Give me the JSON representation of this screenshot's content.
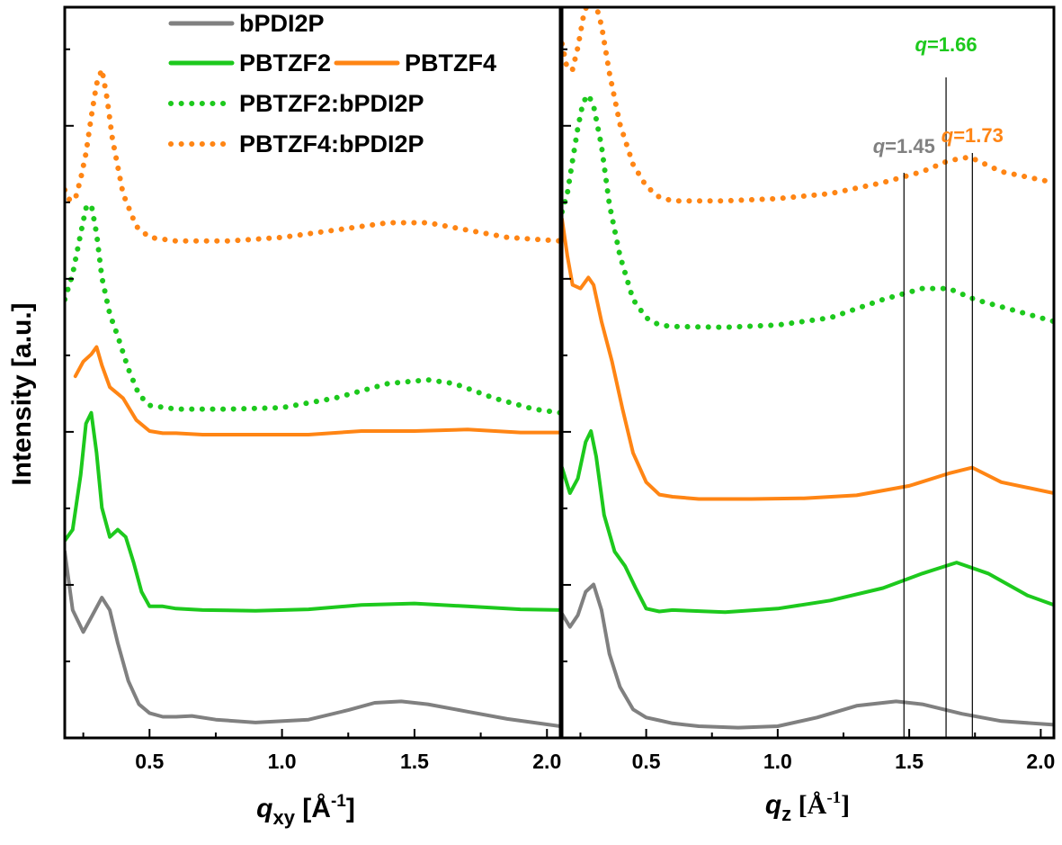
{
  "colors": {
    "bPDI2P": "#808080",
    "PBTZF2": "#1dc91d",
    "PBTZF4": "#ff8514",
    "frame": "#000000",
    "marker": "#000000"
  },
  "legend": {
    "entries": [
      {
        "label": "bPDI2P",
        "series": "bPDI2P",
        "style": "solid"
      },
      {
        "label": "PBTZF2",
        "series": "PBTZF2",
        "style": "solid"
      },
      {
        "label": "PBTZF4",
        "series": "PBTZF4",
        "style": "solid"
      },
      {
        "label": "PBTZF2:bPDI2P",
        "series": "PBTZF2",
        "style": "dotted"
      },
      {
        "label": "PBTZF4:bPDI2P",
        "series": "PBTZF4",
        "style": "dotted"
      }
    ]
  },
  "annotations": [
    {
      "label": "q=1.45",
      "q": 1.48,
      "color_key": "bPDI2P"
    },
    {
      "label": "q=1.66",
      "q": 1.64,
      "color_key": "PBTZF2"
    },
    {
      "label": "q=1.73",
      "q": 1.74,
      "color_key": "PBTZF4"
    }
  ],
  "chart_data": [
    {
      "type": "line",
      "panel": "in-plane",
      "xlabel": "qxy [Å-1]",
      "ylabel": "Intensity [a.u.]",
      "xlim": [
        0.18,
        2.05
      ],
      "ylim": [
        0,
        100
      ],
      "xticks": [
        "0.5",
        "1.0",
        "1.5",
        "2.0"
      ],
      "y_tick_labels": "none",
      "series": [
        {
          "name": "bPDI2P",
          "color_key": "bPDI2P",
          "style": "solid",
          "x": [
            0.18,
            0.21,
            0.25,
            0.28,
            0.32,
            0.35,
            0.38,
            0.42,
            0.46,
            0.5,
            0.55,
            0.6,
            0.66,
            0.75,
            0.9,
            1.1,
            1.25,
            1.35,
            1.45,
            1.55,
            1.7,
            1.85,
            2.05
          ],
          "y": [
            25.5,
            17.5,
            14.5,
            16.5,
            19.2,
            17.5,
            13.0,
            7.8,
            4.6,
            3.4,
            2.9,
            2.9,
            3.0,
            2.5,
            2.1,
            2.5,
            3.8,
            4.8,
            5.0,
            4.6,
            3.6,
            2.6,
            1.6
          ]
        },
        {
          "name": "PBTZF2",
          "color_key": "PBTZF2",
          "style": "solid",
          "x": [
            0.18,
            0.21,
            0.24,
            0.26,
            0.28,
            0.3,
            0.32,
            0.35,
            0.38,
            0.41,
            0.44,
            0.47,
            0.5,
            0.55,
            0.6,
            0.7,
            0.9,
            1.1,
            1.3,
            1.5,
            1.7,
            1.9,
            2.05
          ],
          "y": [
            27.0,
            28.5,
            36.0,
            43.0,
            44.5,
            39.0,
            31.5,
            27.5,
            28.5,
            27.5,
            24.0,
            20.0,
            18.0,
            18.0,
            17.7,
            17.5,
            17.4,
            17.6,
            18.2,
            18.4,
            18.0,
            17.6,
            17.5
          ]
        },
        {
          "name": "PBTZF4",
          "color_key": "PBTZF4",
          "style": "solid",
          "x": [
            0.22,
            0.25,
            0.28,
            0.3,
            0.32,
            0.35,
            0.4,
            0.45,
            0.5,
            0.55,
            0.6,
            0.7,
            0.9,
            1.1,
            1.3,
            1.5,
            1.7,
            1.9,
            2.05
          ],
          "y": [
            49.5,
            51.5,
            52.5,
            53.5,
            51.0,
            48.0,
            46.5,
            43.5,
            42.0,
            41.7,
            41.7,
            41.5,
            41.5,
            41.5,
            42.0,
            42.0,
            42.2,
            41.8,
            41.8
          ]
        },
        {
          "name": "PBTZF2:bPDI2P",
          "color_key": "PBTZF2",
          "style": "dotted",
          "x": [
            0.18,
            0.21,
            0.24,
            0.26,
            0.28,
            0.3,
            0.32,
            0.35,
            0.38,
            0.42,
            0.46,
            0.5,
            0.6,
            0.8,
            1.0,
            1.2,
            1.4,
            1.55,
            1.65,
            1.8,
            1.95,
            2.05
          ],
          "y": [
            60.0,
            63.5,
            69.0,
            72.5,
            73.0,
            69.0,
            63.0,
            58.0,
            55.0,
            50.5,
            47.0,
            45.5,
            45.0,
            45.0,
            45.2,
            46.5,
            48.5,
            49.0,
            48.5,
            46.5,
            45.0,
            44.5
          ]
        },
        {
          "name": "PBTZF4:bPDI2P",
          "color_key": "PBTZF4",
          "style": "dotted",
          "x": [
            0.18,
            0.2,
            0.22,
            0.24,
            0.26,
            0.28,
            0.3,
            0.32,
            0.34,
            0.36,
            0.4,
            0.45,
            0.5,
            0.6,
            0.8,
            1.0,
            1.2,
            1.4,
            1.55,
            1.7,
            1.85,
            2.05
          ],
          "y": [
            75.0,
            73.5,
            73.8,
            76.5,
            80.0,
            85.0,
            89.5,
            91.5,
            87.5,
            82.0,
            74.5,
            70.0,
            68.5,
            68.0,
            68.0,
            68.5,
            69.5,
            70.5,
            70.5,
            69.5,
            68.5,
            68.0
          ]
        }
      ]
    },
    {
      "type": "line",
      "panel": "out-of-plane",
      "xlabel": "qz [Å-1]",
      "xlim": [
        0.18,
        2.05
      ],
      "ylim": [
        0,
        100
      ],
      "xticks": [
        "0.5",
        "1.0",
        "1.5",
        "2.0"
      ],
      "y_tick_labels": "none",
      "series": [
        {
          "name": "bPDI2P",
          "color_key": "bPDI2P",
          "style": "solid",
          "x": [
            0.18,
            0.21,
            0.24,
            0.27,
            0.3,
            0.33,
            0.36,
            0.4,
            0.45,
            0.5,
            0.55,
            0.6,
            0.7,
            0.85,
            1.0,
            1.15,
            1.3,
            1.45,
            1.55,
            1.7,
            1.85,
            2.05
          ],
          "y": [
            17.0,
            15.2,
            16.8,
            20.0,
            21.0,
            17.5,
            11.5,
            7.0,
            3.9,
            2.8,
            2.4,
            2.0,
            1.6,
            1.4,
            1.6,
            2.8,
            4.4,
            5.0,
            4.6,
            3.3,
            2.3,
            1.8
          ]
        },
        {
          "name": "PBTZF2",
          "color_key": "PBTZF2",
          "style": "solid",
          "x": [
            0.18,
            0.21,
            0.24,
            0.27,
            0.29,
            0.31,
            0.34,
            0.38,
            0.42,
            0.46,
            0.5,
            0.55,
            0.6,
            0.8,
            1.0,
            1.2,
            1.4,
            1.55,
            1.68,
            1.8,
            1.95,
            2.05
          ],
          "y": [
            37.0,
            33.5,
            35.5,
            40.5,
            42.0,
            38.5,
            30.5,
            25.5,
            23.5,
            20.5,
            17.7,
            17.3,
            17.5,
            17.2,
            17.7,
            18.8,
            20.5,
            22.5,
            24.0,
            22.5,
            19.5,
            18.2
          ]
        },
        {
          "name": "PBTZF4",
          "color_key": "PBTZF4",
          "style": "solid",
          "x": [
            0.18,
            0.2,
            0.22,
            0.25,
            0.28,
            0.3,
            0.33,
            0.37,
            0.41,
            0.45,
            0.5,
            0.55,
            0.6,
            0.7,
            0.9,
            1.1,
            1.3,
            1.5,
            1.65,
            1.74,
            1.85,
            2.05
          ],
          "y": [
            71.0,
            66.0,
            62.0,
            61.5,
            63.0,
            62.0,
            57.0,
            51.5,
            45.0,
            39.0,
            35.0,
            33.3,
            33.0,
            32.7,
            32.7,
            32.8,
            33.2,
            34.5,
            36.2,
            37.0,
            35.0,
            33.5
          ]
        },
        {
          "name": "PBTZF2:bPDI2P",
          "color_key": "PBTZF2",
          "style": "dotted",
          "x": [
            0.18,
            0.2,
            0.22,
            0.24,
            0.26,
            0.28,
            0.3,
            0.33,
            0.36,
            0.4,
            0.45,
            0.5,
            0.55,
            0.6,
            0.8,
            1.0,
            1.2,
            1.4,
            1.55,
            1.65,
            1.75,
            1.9,
            2.05
          ],
          "y": [
            72.0,
            74.5,
            79.0,
            83.5,
            87.0,
            88.0,
            86.5,
            81.0,
            73.0,
            66.0,
            60.0,
            57.5,
            56.5,
            56.3,
            56.2,
            56.5,
            57.5,
            60.0,
            61.5,
            61.5,
            60.0,
            58.5,
            57.0
          ]
        },
        {
          "name": "PBTZF4:bPDI2P",
          "color_key": "PBTZF4",
          "style": "dotted",
          "x": [
            0.18,
            0.2,
            0.22,
            0.24,
            0.26,
            0.28,
            0.3,
            0.33,
            0.36,
            0.4,
            0.45,
            0.5,
            0.55,
            0.6,
            0.8,
            1.0,
            1.2,
            1.4,
            1.55,
            1.65,
            1.73,
            1.85,
            2.05
          ],
          "y": [
            95.0,
            91.5,
            91.5,
            94.5,
            98.5,
            101.0,
            101.5,
            97.5,
            91.0,
            84.0,
            78.5,
            75.5,
            74.0,
            73.5,
            73.5,
            73.8,
            74.5,
            76.0,
            77.5,
            79.0,
            79.5,
            77.5,
            76.0
          ]
        }
      ]
    }
  ]
}
